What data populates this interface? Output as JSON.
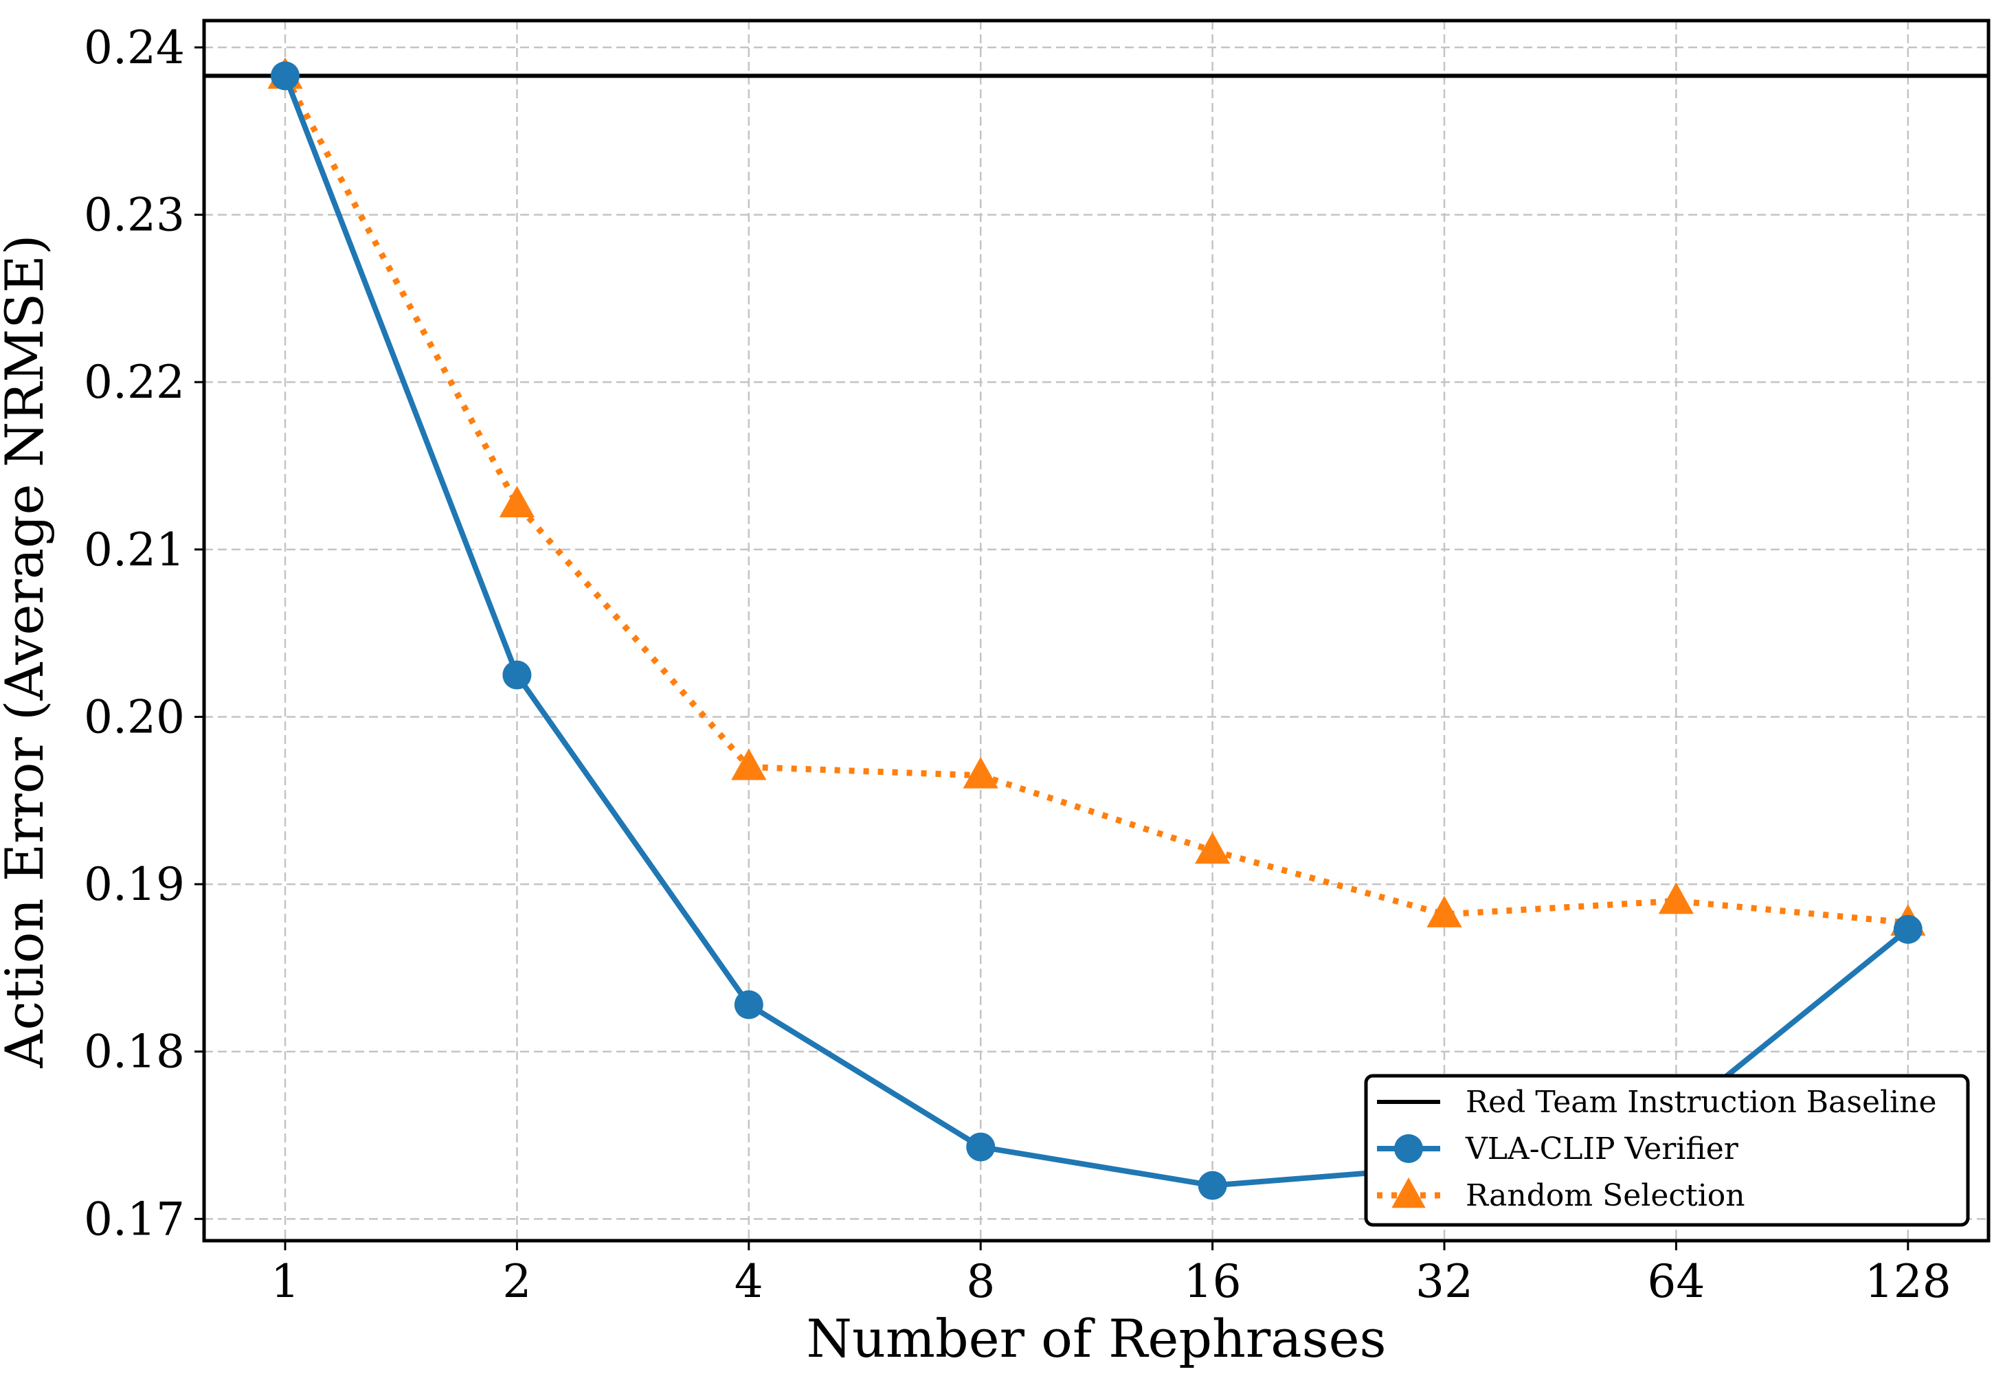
{
  "chart_data": {
    "type": "line",
    "title": "",
    "xlabel": "Number of Rephrases",
    "ylabel": "Action Error (Average NRMSE)",
    "x_scale": "log2",
    "categories": [
      "1",
      "2",
      "4",
      "8",
      "16",
      "32",
      "64",
      "128"
    ],
    "x": [
      1,
      2,
      4,
      8,
      16,
      32,
      64,
      128
    ],
    "ylim": [
      0.1687,
      0.2416
    ],
    "yticks": [
      "0.17",
      "0.18",
      "0.19",
      "0.20",
      "0.21",
      "0.22",
      "0.23",
      "0.24"
    ],
    "grid": true,
    "legend_position": "lower right",
    "baseline": {
      "name": "Red Team Instruction Baseline",
      "value": 0.2383,
      "color": "#000000"
    },
    "series": [
      {
        "name": "VLA-CLIP Verifier",
        "values": [
          0.2383,
          0.2025,
          0.1828,
          0.1743,
          0.172,
          0.1731,
          0.1761,
          0.1873
        ],
        "color": "#1f77b4",
        "marker": "circle",
        "linestyle": "solid"
      },
      {
        "name": "Random Selection",
        "values": [
          0.2383,
          0.2127,
          0.197,
          0.1965,
          0.192,
          0.1882,
          0.189,
          0.1877
        ],
        "color": "#ff7f0e",
        "marker": "triangle",
        "linestyle": "dotted"
      }
    ]
  }
}
